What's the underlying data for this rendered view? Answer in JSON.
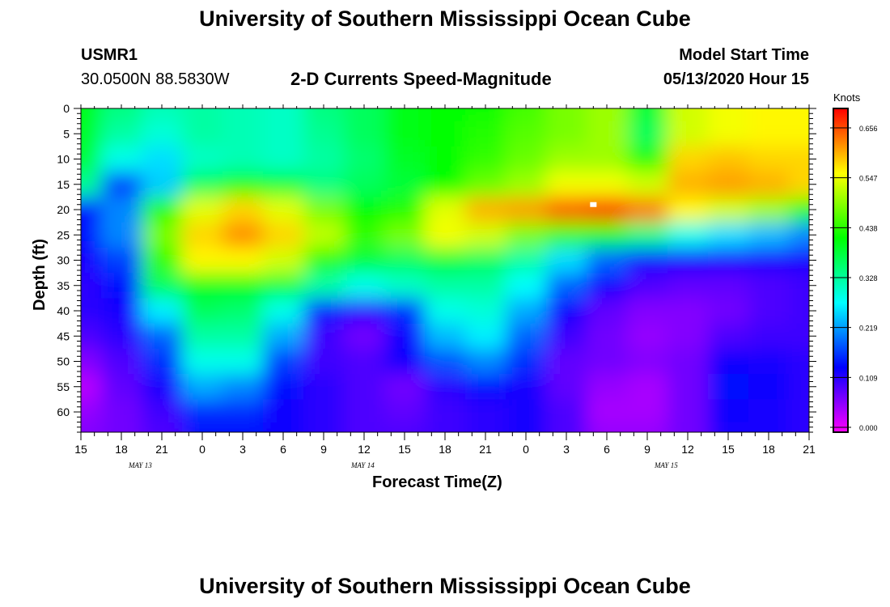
{
  "header": {
    "title": "University of Southern Mississippi Ocean Cube",
    "station": "USMR1",
    "coords": "30.0500N 88.5830W",
    "product": "2-D Currents Speed-Magnitude",
    "model_label": "Model Start Time",
    "model_time": "05/13/2020 Hour 15"
  },
  "footer": {
    "title": "University of Southern Mississippi Ocean Cube"
  },
  "chart_data": {
    "type": "heatmap",
    "xlabel": "Forecast Time(Z)",
    "ylabel": "Depth (ft)",
    "x_hours": [
      0,
      3,
      6,
      9,
      12,
      15,
      18,
      21,
      24,
      27,
      30,
      33,
      36,
      39,
      42,
      45,
      48,
      51,
      54
    ],
    "x_tick_labels": [
      "15",
      "18",
      "21",
      "0",
      "3",
      "6",
      "9",
      "12",
      "15",
      "18",
      "21",
      "0",
      "3",
      "6",
      "9",
      "12",
      "15",
      "18",
      "21"
    ],
    "date_labels": [
      {
        "text": "MAY 13",
        "at_hour": 4.4
      },
      {
        "text": "MAY 14",
        "at_hour": 20.9
      },
      {
        "text": "MAY 15",
        "at_hour": 43.4
      }
    ],
    "y_ticks": [
      0,
      5,
      10,
      15,
      20,
      25,
      30,
      35,
      40,
      45,
      50,
      55,
      60
    ],
    "ylim": [
      0,
      64
    ],
    "colorbar": {
      "unit": "Knots",
      "ticks": [
        "0.656",
        "0.547",
        "0.438",
        "0.328",
        "0.219",
        "0.109",
        "0.000"
      ],
      "range": [
        0,
        0.72
      ]
    },
    "depths_ft": [
      0,
      5,
      10,
      15,
      20,
      25,
      30,
      35,
      40,
      45,
      50,
      55,
      60,
      64
    ],
    "times_hours": [
      0,
      3,
      6,
      9,
      12,
      15,
      18,
      21,
      24,
      27,
      30,
      33,
      36,
      39,
      42,
      45,
      48,
      51,
      54
    ],
    "values": [
      [
        0.42,
        0.36,
        0.33,
        0.34,
        0.33,
        0.32,
        0.36,
        0.38,
        0.42,
        0.43,
        0.44,
        0.47,
        0.5,
        0.52,
        0.4,
        0.55,
        0.57,
        0.58,
        0.58
      ],
      [
        0.41,
        0.34,
        0.31,
        0.34,
        0.33,
        0.32,
        0.35,
        0.38,
        0.42,
        0.43,
        0.45,
        0.48,
        0.5,
        0.52,
        0.38,
        0.55,
        0.57,
        0.58,
        0.58
      ],
      [
        0.4,
        0.3,
        0.27,
        0.32,
        0.33,
        0.32,
        0.34,
        0.37,
        0.41,
        0.43,
        0.46,
        0.49,
        0.52,
        0.52,
        0.45,
        0.6,
        0.61,
        0.6,
        0.6
      ],
      [
        0.35,
        0.18,
        0.26,
        0.38,
        0.44,
        0.4,
        0.36,
        0.38,
        0.4,
        0.43,
        0.49,
        0.52,
        0.57,
        0.57,
        0.55,
        0.62,
        0.63,
        0.62,
        0.6
      ],
      [
        0.15,
        0.22,
        0.45,
        0.56,
        0.6,
        0.56,
        0.5,
        0.43,
        0.45,
        0.56,
        0.62,
        0.63,
        0.67,
        0.69,
        0.65,
        0.58,
        0.55,
        0.52,
        0.45
      ],
      [
        0.15,
        0.22,
        0.5,
        0.6,
        0.64,
        0.6,
        0.54,
        0.46,
        0.5,
        0.57,
        0.55,
        0.5,
        0.46,
        0.43,
        0.36,
        0.3,
        0.27,
        0.25,
        0.22
      ],
      [
        0.13,
        0.18,
        0.46,
        0.58,
        0.58,
        0.55,
        0.45,
        0.4,
        0.38,
        0.4,
        0.38,
        0.34,
        0.27,
        0.2,
        0.15,
        0.14,
        0.13,
        0.13,
        0.13
      ],
      [
        0.12,
        0.15,
        0.38,
        0.42,
        0.42,
        0.4,
        0.34,
        0.3,
        0.32,
        0.34,
        0.34,
        0.29,
        0.2,
        0.14,
        0.1,
        0.09,
        0.09,
        0.1,
        0.11
      ],
      [
        0.12,
        0.13,
        0.28,
        0.38,
        0.37,
        0.3,
        0.16,
        0.12,
        0.17,
        0.3,
        0.31,
        0.24,
        0.14,
        0.09,
        0.07,
        0.07,
        0.08,
        0.1,
        0.11
      ],
      [
        0.1,
        0.12,
        0.2,
        0.34,
        0.34,
        0.24,
        0.11,
        0.08,
        0.14,
        0.25,
        0.28,
        0.2,
        0.11,
        0.08,
        0.06,
        0.07,
        0.1,
        0.11,
        0.11
      ],
      [
        0.07,
        0.1,
        0.17,
        0.3,
        0.3,
        0.18,
        0.11,
        0.1,
        0.14,
        0.19,
        0.22,
        0.17,
        0.09,
        0.08,
        0.07,
        0.08,
        0.14,
        0.13,
        0.12
      ],
      [
        0.04,
        0.09,
        0.13,
        0.24,
        0.22,
        0.15,
        0.12,
        0.1,
        0.08,
        0.12,
        0.15,
        0.13,
        0.09,
        0.06,
        0.05,
        0.08,
        0.15,
        0.14,
        0.12
      ],
      [
        0.06,
        0.08,
        0.11,
        0.17,
        0.17,
        0.14,
        0.12,
        0.1,
        0.09,
        0.11,
        0.12,
        0.13,
        0.1,
        0.05,
        0.05,
        0.08,
        0.14,
        0.13,
        0.12
      ],
      [
        0.07,
        0.08,
        0.1,
        0.15,
        0.15,
        0.14,
        0.12,
        0.1,
        0.1,
        0.11,
        0.12,
        0.13,
        0.1,
        0.06,
        0.06,
        0.08,
        0.13,
        0.13,
        0.12
      ]
    ],
    "white_marker": {
      "time_hours": 38.0,
      "depth_ft": 19
    }
  }
}
